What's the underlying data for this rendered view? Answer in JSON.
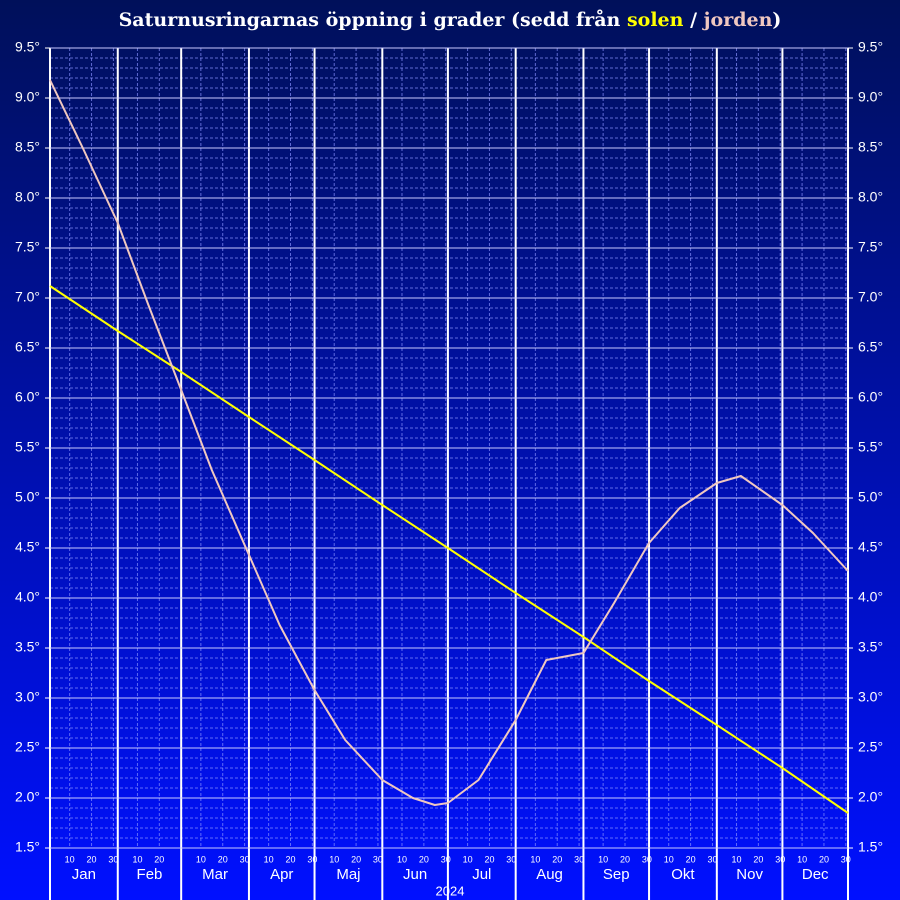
{
  "chart_data": {
    "type": "line",
    "title": "Saturnusringarnas öppning i grader (sedd från",
    "title_separator": "/",
    "title_close": ")",
    "x_label": "2024",
    "categories": [
      "Jan",
      "Feb",
      "Mar",
      "Apr",
      "Maj",
      "Jun",
      "Jul",
      "Aug",
      "Sep",
      "Okt",
      "Nov",
      "Dec"
    ],
    "day_ticks": [
      10,
      20,
      30
    ],
    "xlim": [
      "2024-01-01",
      "2024-12-31"
    ],
    "ylim": [
      1.5,
      9.5
    ],
    "yticks": [
      {
        "value": 1.5,
        "label": "1.5°"
      },
      {
        "value": 2.0,
        "label": "2.0°"
      },
      {
        "value": 2.5,
        "label": "2.5°"
      },
      {
        "value": 3.0,
        "label": "3.0°"
      },
      {
        "value": 3.5,
        "label": "3.5°"
      },
      {
        "value": 4.0,
        "label": "4.0°"
      },
      {
        "value": 4.5,
        "label": "4.5°"
      },
      {
        "value": 5.0,
        "label": "5.0°"
      },
      {
        "value": 5.5,
        "label": "5.5°"
      },
      {
        "value": 6.0,
        "label": "6.0°"
      },
      {
        "value": 6.5,
        "label": "6.5°"
      },
      {
        "value": 7.0,
        "label": "7.0°"
      },
      {
        "value": 7.5,
        "label": "7.5°"
      },
      {
        "value": 8.0,
        "label": "8.0°"
      },
      {
        "value": 8.5,
        "label": "8.5°"
      },
      {
        "value": 9.0,
        "label": "9.0°"
      },
      {
        "value": 9.5,
        "label": "9.5°"
      }
    ],
    "grid": true,
    "series": [
      {
        "name": "solen",
        "color": "#ffff00",
        "x": [
          "2024-01-01",
          "2024-02-01",
          "2024-03-01",
          "2024-04-01",
          "2024-05-01",
          "2024-06-01",
          "2024-07-01",
          "2024-08-01",
          "2024-09-01",
          "2024-10-01",
          "2024-11-01",
          "2024-12-01",
          "2024-12-31"
        ],
        "values": [
          7.12,
          6.67,
          6.26,
          5.81,
          5.38,
          4.93,
          4.5,
          4.05,
          3.61,
          3.17,
          2.73,
          2.3,
          1.85
        ]
      },
      {
        "name": "jorden",
        "color": "#f0c8c0",
        "x": [
          "2024-01-01",
          "2024-01-16",
          "2024-02-01",
          "2024-02-15",
          "2024-03-01",
          "2024-03-15",
          "2024-04-01",
          "2024-04-15",
          "2024-05-01",
          "2024-05-15",
          "2024-06-01",
          "2024-06-15",
          "2024-06-25",
          "2024-07-01",
          "2024-07-15",
          "2024-08-01",
          "2024-08-15",
          "2024-09-01",
          "2024-09-15",
          "2024-10-01",
          "2024-10-15",
          "2024-11-01",
          "2024-11-12",
          "2024-12-01",
          "2024-12-15",
          "2024-12-31"
        ],
        "values": [
          9.18,
          8.5,
          7.75,
          6.93,
          6.08,
          5.28,
          4.43,
          3.73,
          3.08,
          2.58,
          2.18,
          2.0,
          1.93,
          1.95,
          2.18,
          2.78,
          3.38,
          3.45,
          3.95,
          4.55,
          4.9,
          5.15,
          5.22,
          4.93,
          4.65,
          4.27
        ]
      }
    ]
  }
}
